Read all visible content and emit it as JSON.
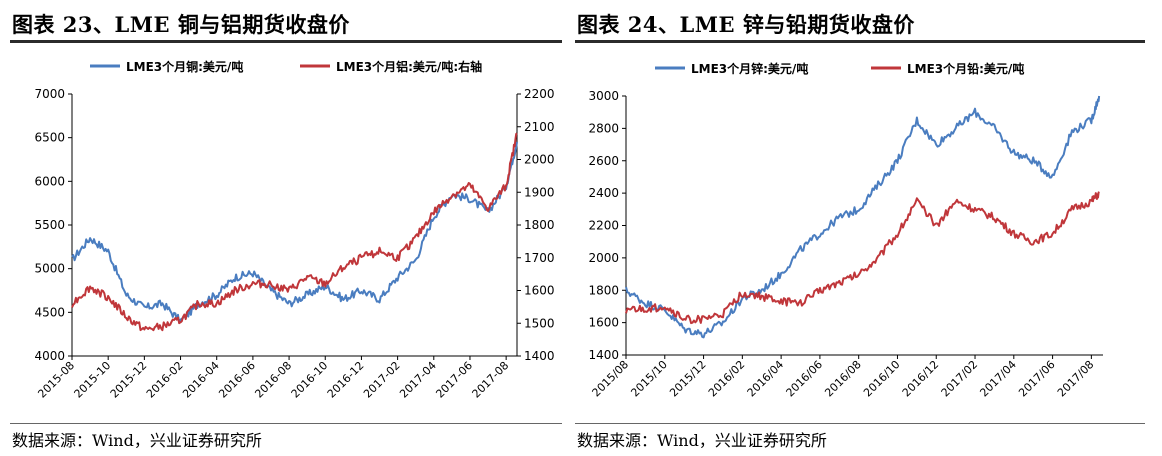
{
  "left": {
    "title": "图表 23、LME 铜与铝期货收盘价",
    "source": "数据来源：Wind，兴业证券研究所"
  },
  "right": {
    "title": "图表 24、LME 锌与铅期货收盘价",
    "source": "数据来源：Wind，兴业证券研究所"
  },
  "colors": {
    "blue": "#4a7dc0",
    "red": "#c0363a",
    "axis": "#000000",
    "grid": "#ffffff"
  },
  "chart_data": [
    {
      "type": "line",
      "title": "图表 23、LME 铜与铝期货收盘价",
      "x_tick_labels": [
        "2015-08",
        "2015-10",
        "2015-12",
        "2016-02",
        "2016-04",
        "2016-06",
        "2016-08",
        "2016-10",
        "2016-12",
        "2017-02",
        "2017-04",
        "2017-06",
        "2017-08"
      ],
      "y_left": {
        "ylim": [
          4000,
          7000
        ],
        "ticks": [
          4000,
          4500,
          5000,
          5500,
          6000,
          6500,
          7000
        ]
      },
      "y_right": {
        "ylim": [
          1400,
          2200
        ],
        "ticks": [
          1400,
          1500,
          1600,
          1700,
          1800,
          1900,
          2000,
          2100,
          2200
        ],
        "label": "右轴"
      },
      "legend_position": "top",
      "grid": false,
      "series": [
        {
          "name": "LME3个月铜:美元/吨",
          "axis": "left",
          "color": "#4a7dc0",
          "x": [
            0,
            0.5,
            1,
            1.5,
            2,
            2.5,
            3,
            3.5,
            4,
            4.5,
            5,
            5.5,
            6,
            6.5,
            7,
            7.5,
            8,
            8.5,
            9,
            9.5,
            10,
            10.5,
            11,
            11.5,
            12,
            12.3
          ],
          "values": [
            5100,
            5350,
            5200,
            4700,
            4550,
            4600,
            4400,
            4600,
            4700,
            4900,
            4950,
            4750,
            4600,
            4700,
            4800,
            4650,
            4750,
            4650,
            4900,
            5100,
            5600,
            5850,
            5800,
            5650,
            5950,
            6450
          ]
        },
        {
          "name": "LME3个月铝:美元/吨:右轴",
          "axis": "right",
          "color": "#c0363a",
          "x": [
            0,
            0.5,
            1,
            1.5,
            2,
            2.5,
            3,
            3.5,
            4,
            4.5,
            5,
            5.5,
            6,
            6.5,
            7,
            7.5,
            8,
            8.5,
            9,
            9.5,
            10,
            10.5,
            11,
            11.5,
            12,
            12.3
          ],
          "values": [
            1560,
            1610,
            1580,
            1520,
            1480,
            1490,
            1510,
            1560,
            1560,
            1600,
            1620,
            1620,
            1600,
            1640,
            1620,
            1670,
            1700,
            1720,
            1700,
            1760,
            1840,
            1890,
            1920,
            1850,
            1920,
            2080
          ]
        }
      ]
    },
    {
      "type": "line",
      "title": "图表 24、LME 锌与铅期货收盘价",
      "x_tick_labels": [
        "2015/08",
        "2015/10",
        "2015/12",
        "2016/02",
        "2016/04",
        "2016/06",
        "2016/08",
        "2016/10",
        "2016/12",
        "2017/02",
        "2017/04",
        "2017/06",
        "2017/08"
      ],
      "y_left": {
        "ylim": [
          1400,
          3000
        ],
        "ticks": [
          1400,
          1600,
          1800,
          2000,
          2200,
          2400,
          2600,
          2800,
          3000
        ]
      },
      "legend_position": "top",
      "grid": false,
      "series": [
        {
          "name": "LME3个月锌:美元/吨",
          "axis": "left",
          "color": "#4a7dc0",
          "x": [
            0,
            0.5,
            1,
            1.5,
            2,
            2.5,
            3,
            3.5,
            4,
            4.5,
            5,
            5.5,
            6,
            6.5,
            7,
            7.5,
            8,
            8.5,
            9,
            9.5,
            10,
            10.5,
            11,
            11.5,
            12,
            12.2
          ],
          "values": [
            1800,
            1720,
            1680,
            1560,
            1530,
            1600,
            1750,
            1800,
            1900,
            2050,
            2150,
            2250,
            2300,
            2450,
            2600,
            2850,
            2700,
            2800,
            2900,
            2800,
            2650,
            2600,
            2500,
            2780,
            2850,
            3000
          ]
        },
        {
          "name": "LME3个月铅:美元/吨",
          "axis": "left",
          "color": "#c0363a",
          "x": [
            0,
            0.5,
            1,
            1.5,
            2,
            2.5,
            3,
            3.5,
            4,
            4.5,
            5,
            5.5,
            6,
            6.5,
            7,
            7.5,
            8,
            8.5,
            9,
            9.5,
            10,
            10.5,
            11,
            11.5,
            12,
            12.2
          ],
          "values": [
            1680,
            1680,
            1700,
            1620,
            1620,
            1650,
            1780,
            1760,
            1730,
            1720,
            1800,
            1850,
            1900,
            2000,
            2150,
            2350,
            2200,
            2350,
            2300,
            2250,
            2150,
            2100,
            2150,
            2300,
            2350,
            2400
          ]
        }
      ]
    }
  ]
}
